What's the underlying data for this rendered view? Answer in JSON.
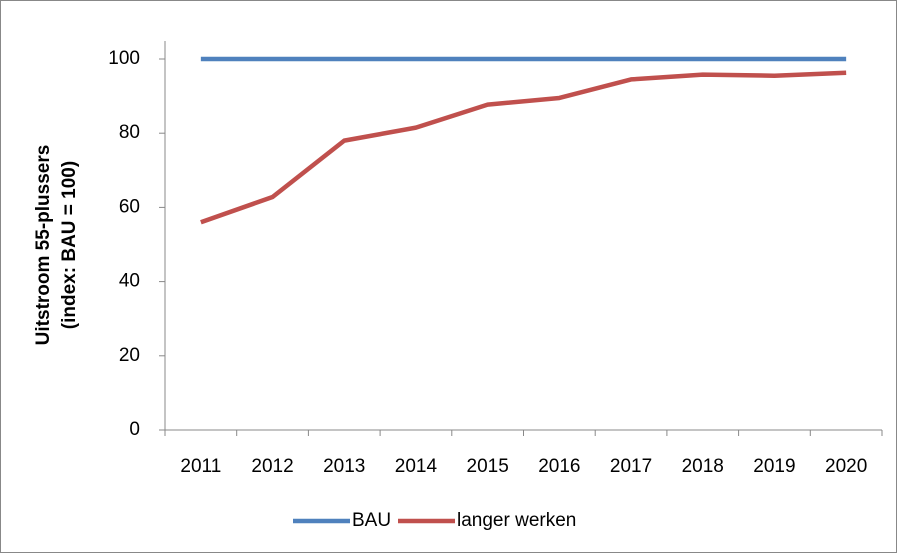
{
  "chart_data": {
    "type": "line",
    "y_label": [
      "Uitstroom 55-plussers",
      "(index: BAU = 100)"
    ],
    "categories": [
      "2011",
      "2012",
      "2013",
      "2014",
      "2015",
      "2016",
      "2017",
      "2018",
      "2019",
      "2020"
    ],
    "series": [
      {
        "name": "BAU",
        "color": "#4f81bd",
        "values": [
          100,
          100,
          100,
          100,
          100,
          100,
          100,
          100,
          100,
          100
        ]
      },
      {
        "name": "langer werken",
        "color": "#c0504d",
        "values": [
          56,
          62.8,
          78,
          81.5,
          87.7,
          89.5,
          94.5,
          95.8,
          95.5,
          96.3
        ]
      }
    ],
    "ylim": [
      0,
      100
    ],
    "yticks": [
      0,
      20,
      40,
      60,
      80,
      100
    ],
    "grid": false,
    "legend": "bottom"
  }
}
